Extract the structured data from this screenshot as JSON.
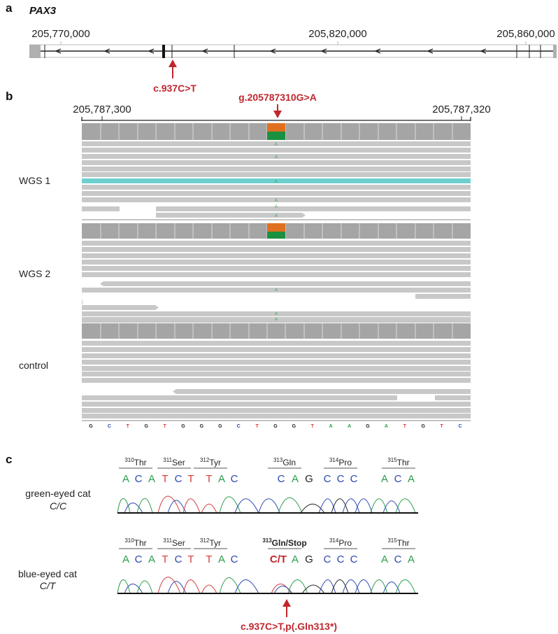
{
  "panels": {
    "a": "a",
    "b": "b",
    "c": "c"
  },
  "gene": "PAX3",
  "genomic_coords": [
    "205,770,000",
    "205,820,000",
    "205,860,000"
  ],
  "variant_cdna": "c.937C>T",
  "zoom_coords": [
    "205,787,300",
    "205,787,320"
  ],
  "variant_genomic": "g.205787310G>A",
  "samples": [
    "WGS 1",
    "WGS 2",
    "control"
  ],
  "read_alt_base": "A",
  "reference_sequence": [
    "G",
    "C",
    "T",
    "G",
    "T",
    "G",
    "G",
    "G",
    "C",
    "T",
    "G",
    "G",
    "T",
    "A",
    "A",
    "G",
    "A",
    "T",
    "G",
    "T",
    "C"
  ],
  "codons": [
    {
      "num": "310",
      "aa": "Thr"
    },
    {
      "num": "311",
      "aa": "Ser"
    },
    {
      "num": "312",
      "aa": "Tyr"
    },
    {
      "num": "313",
      "aa": "Gln"
    },
    {
      "num": "314",
      "aa": "Pro"
    },
    {
      "num": "315",
      "aa": "Thr"
    }
  ],
  "mutant_codon": {
    "num": "313",
    "aa": "Gln/Stop",
    "first_base": "C/T"
  },
  "seq_bases": [
    "A",
    "C",
    "A",
    "T",
    "C",
    "T",
    "T",
    "A",
    "C",
    "C",
    "A",
    "G",
    "C",
    "C",
    "C",
    "A",
    "C",
    "A"
  ],
  "cats": [
    {
      "label": "green-eyed cat",
      "genotype": "C/C"
    },
    {
      "label": "blue-eyed cat",
      "genotype": "C/T"
    }
  ],
  "protein_change": "c.937C>T,p(.Gln313*)",
  "base_colors": {
    "A": "#2a9d4a",
    "C": "#2b47b0",
    "G": "#222222",
    "T": "#d63a3a"
  },
  "variant_colors": {
    "alt": "#e07020",
    "ref": "#1a9040",
    "highlight_read": "#6fcfcf",
    "label": "#c0272d"
  }
}
